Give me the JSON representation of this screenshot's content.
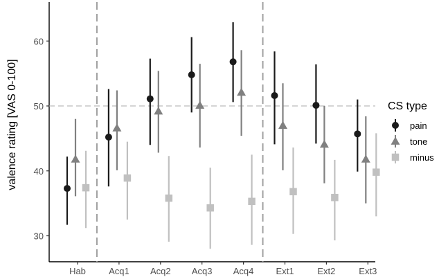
{
  "chart_data": {
    "type": "scatter",
    "ylabel": "valence rating [VAS 0-100]",
    "xlabel": "",
    "categories": [
      "Hab",
      "Acq1",
      "Acq2",
      "Acq3",
      "Acq4",
      "Ext1",
      "Ext2",
      "Ext3"
    ],
    "ylim": [
      26,
      66
    ],
    "yticks": [
      30,
      40,
      50,
      60
    ],
    "reference_line": 50,
    "phase_separators": [
      "Hab|Acq1",
      "Acq4|Ext1"
    ],
    "grid": false,
    "legend": {
      "title": "CS type",
      "position": "right"
    },
    "series": [
      {
        "name": "pain",
        "marker": "circle",
        "color": "#1a1a1a",
        "values": [
          37.3,
          45.2,
          51.1,
          54.8,
          56.8,
          51.6,
          50.1,
          45.7
        ],
        "lower": [
          31.7,
          37.6,
          44.0,
          49.0,
          50.6,
          44.1,
          44.2,
          39.9
        ],
        "upper": [
          42.2,
          52.6,
          57.3,
          60.6,
          62.9,
          58.4,
          56.4,
          51.0
        ]
      },
      {
        "name": "tone",
        "marker": "triangle",
        "color": "#808080",
        "values": [
          41.8,
          46.6,
          49.2,
          50.1,
          52.1,
          47.0,
          44.1,
          41.8
        ],
        "lower": [
          36.1,
          40.1,
          42.8,
          43.6,
          45.4,
          40.1,
          38.1,
          35.0
        ],
        "upper": [
          48.0,
          52.4,
          55.4,
          56.5,
          58.6,
          53.5,
          50.0,
          48.4
        ]
      },
      {
        "name": "minus",
        "marker": "square",
        "color": "#c0c0c0",
        "values": [
          37.4,
          38.9,
          35.8,
          34.3,
          35.3,
          36.8,
          35.9,
          39.8
        ],
        "lower": [
          31.2,
          32.5,
          29.1,
          28.0,
          28.6,
          30.3,
          29.3,
          33.0
        ],
        "upper": [
          43.1,
          44.5,
          42.3,
          40.5,
          42.5,
          43.6,
          41.7,
          45.8
        ]
      }
    ]
  }
}
